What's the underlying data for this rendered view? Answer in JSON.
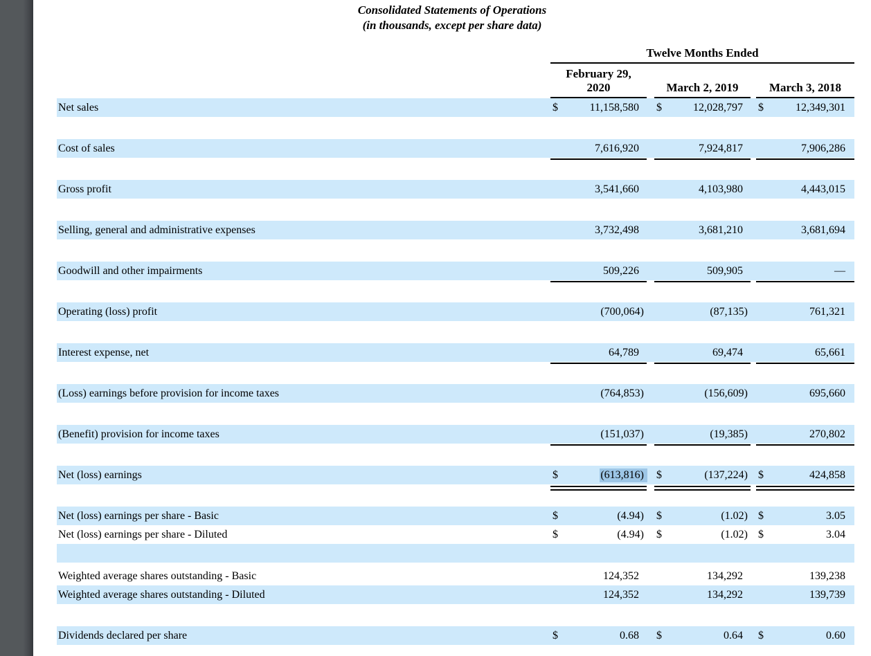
{
  "title": "Consolidated Statements of Operations",
  "subtitle": "(in thousands, except per share data)",
  "colors": {
    "row_shade": "#cee9fb",
    "selection_highlight": "#9dc6e6",
    "sidebar_gray": "#54585b",
    "page_background": "#ffffff",
    "text": "#000000",
    "rule": "#000000"
  },
  "selection": {
    "row": "Net (loss) earnings",
    "column": "February 29, 2020",
    "value": "(613,816)"
  },
  "table": {
    "period_header": "Twelve Months Ended",
    "currency_symbol": "$",
    "columns": [
      {
        "label_line1": "February 29,",
        "label_line2": "2020"
      },
      {
        "label_line1": "March 2, 2019",
        "label_line2": ""
      },
      {
        "label_line1": "March 3, 2018",
        "label_line2": ""
      }
    ],
    "rows": [
      {
        "label": "Net sales",
        "dollar": true,
        "values": [
          "11,158,580",
          "12,028,797",
          "12,349,301"
        ],
        "shaded": true,
        "rule": "none",
        "gap_after": "section"
      },
      {
        "label": "Cost of sales",
        "dollar": false,
        "values": [
          "7,616,920",
          "7,924,817",
          "7,906,286"
        ],
        "shaded": true,
        "rule": "single",
        "gap_after": "section"
      },
      {
        "label": "Gross profit",
        "dollar": false,
        "values": [
          "3,541,660",
          "4,103,980",
          "4,443,015"
        ],
        "shaded": true,
        "rule": "none",
        "gap_after": "section"
      },
      {
        "label": "Selling, general and administrative expenses",
        "dollar": false,
        "values": [
          "3,732,498",
          "3,681,210",
          "3,681,694"
        ],
        "shaded": true,
        "rule": "none",
        "gap_after": "section"
      },
      {
        "label": "Goodwill and other impairments",
        "dollar": false,
        "values": [
          "509,226",
          "509,905",
          "—"
        ],
        "shaded": true,
        "rule": "single",
        "gap_after": "section"
      },
      {
        "label": "Operating (loss) profit",
        "dollar": false,
        "values": [
          "(700,064)",
          "(87,135)",
          "761,321"
        ],
        "shaded": true,
        "rule": "none",
        "gap_after": "section"
      },
      {
        "label": "Interest expense, net",
        "dollar": false,
        "values": [
          "64,789",
          "69,474",
          "65,661"
        ],
        "shaded": true,
        "rule": "single",
        "gap_after": "section"
      },
      {
        "label": "(Loss) earnings before provision for income taxes",
        "dollar": false,
        "values": [
          "(764,853)",
          "(156,609)",
          "695,660"
        ],
        "shaded": true,
        "rule": "none",
        "gap_after": "section"
      },
      {
        "label": "(Benefit) provision for income taxes",
        "dollar": false,
        "values": [
          "(151,037)",
          "(19,385)",
          "270,802"
        ],
        "shaded": true,
        "rule": "single",
        "gap_after": "section"
      },
      {
        "label": "Net (loss) earnings",
        "dollar": true,
        "values": [
          "(613,816)",
          "(137,224)",
          "424,858"
        ],
        "shaded": true,
        "rule": "double",
        "gap_after": "section",
        "highlight_col": 0
      },
      {
        "label": "Net (loss) earnings per share - Basic",
        "dollar": true,
        "values": [
          "(4.94)",
          "(1.02)",
          "3.05"
        ],
        "shaded": true,
        "rule": "none",
        "gap_after": "none"
      },
      {
        "label": "Net (loss) earnings per share - Diluted",
        "dollar": true,
        "values": [
          "(4.94)",
          "(1.02)",
          "3.04"
        ],
        "shaded": false,
        "rule": "none",
        "gap_after": "none"
      },
      {
        "label": "",
        "dollar": false,
        "values": [
          "",
          "",
          ""
        ],
        "shaded": true,
        "rule": "none",
        "gap_after": "small"
      },
      {
        "label": "Weighted average shares outstanding - Basic",
        "dollar": false,
        "values": [
          "124,352",
          "134,292",
          "139,238"
        ],
        "shaded": false,
        "rule": "none",
        "gap_after": "none"
      },
      {
        "label": "Weighted average shares outstanding - Diluted",
        "dollar": false,
        "values": [
          "124,352",
          "134,292",
          "139,739"
        ],
        "shaded": true,
        "rule": "none",
        "gap_after": "section"
      },
      {
        "label": "Dividends declared per share",
        "dollar": true,
        "values": [
          "0.68",
          "0.64",
          "0.60"
        ],
        "shaded": true,
        "rule": "none",
        "gap_after": "none"
      }
    ]
  }
}
